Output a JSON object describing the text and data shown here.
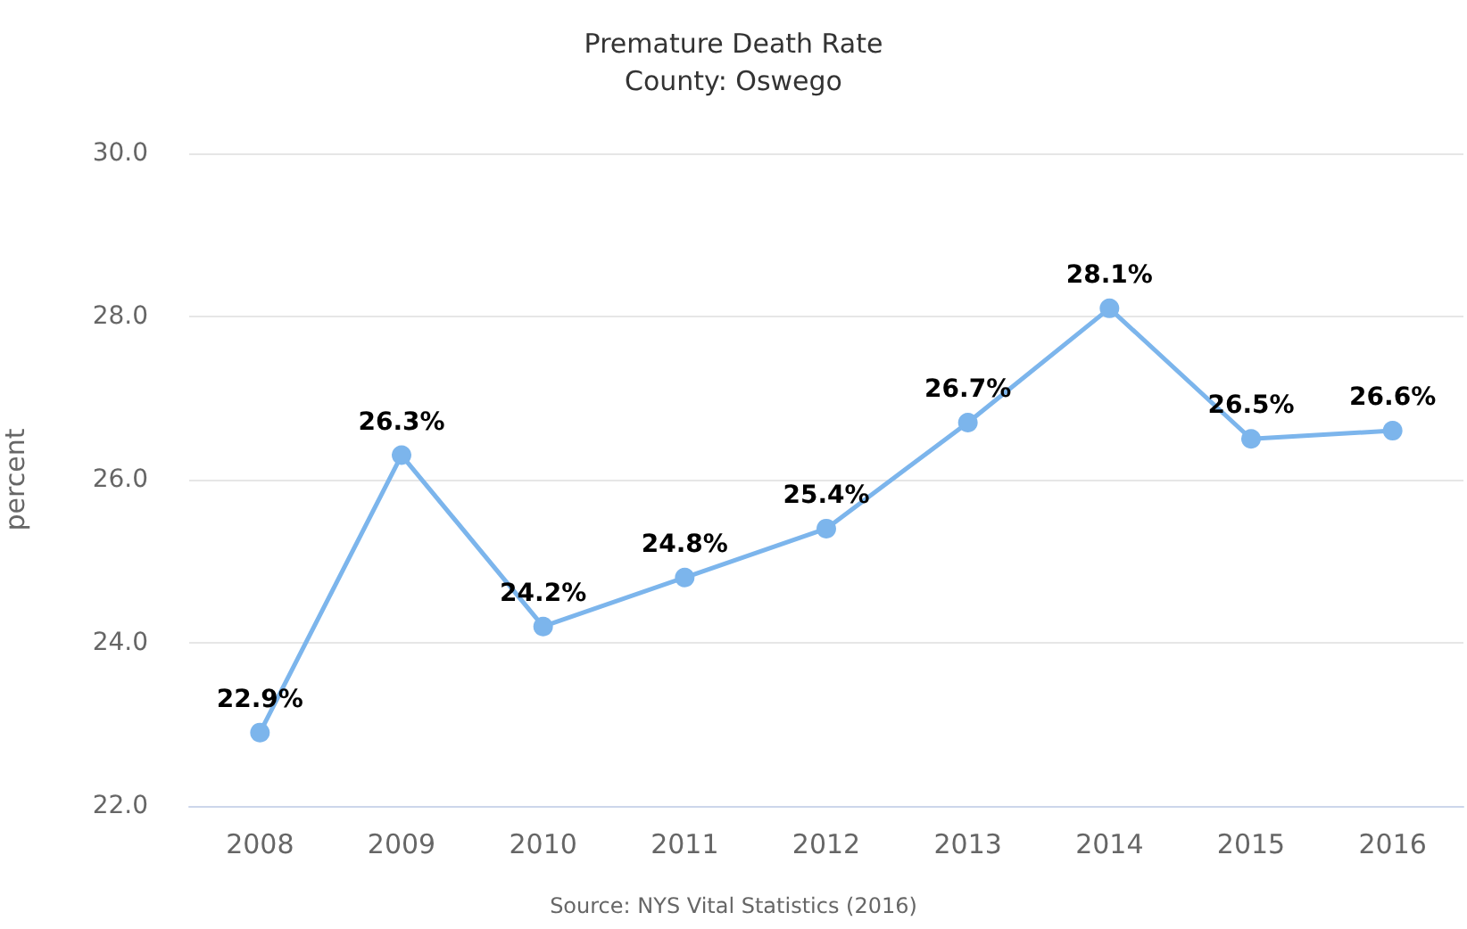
{
  "chart_data": {
    "type": "line",
    "title": "Premature Death Rate",
    "subtitle": "County: Oswego",
    "ylabel": "percent",
    "annotations": [
      "Source: NYS Vital Statistics (2016)"
    ],
    "categories": [
      "2008",
      "2009",
      "2010",
      "2011",
      "2012",
      "2013",
      "2014",
      "2015",
      "2016"
    ],
    "values": [
      22.9,
      26.3,
      24.2,
      24.8,
      25.4,
      26.7,
      28.1,
      26.5,
      26.6
    ],
    "color": "#7cb5ec",
    "value_labels": [
      "22.9%",
      "26.3%",
      "24.2%",
      "24.8%",
      "25.4%",
      "26.7%",
      "28.1%",
      "26.5%",
      "26.6%"
    ],
    "ylim": [
      22,
      30
    ],
    "yticks": [
      {
        "value": 22,
        "label": "22.0"
      },
      {
        "value": 24,
        "label": "24.0"
      },
      {
        "value": 26,
        "label": "26.0"
      },
      {
        "value": 28,
        "label": "28.0"
      },
      {
        "value": 30,
        "label": "30.0"
      }
    ],
    "grid": "y",
    "marker": "circle",
    "line_style": "solid"
  }
}
